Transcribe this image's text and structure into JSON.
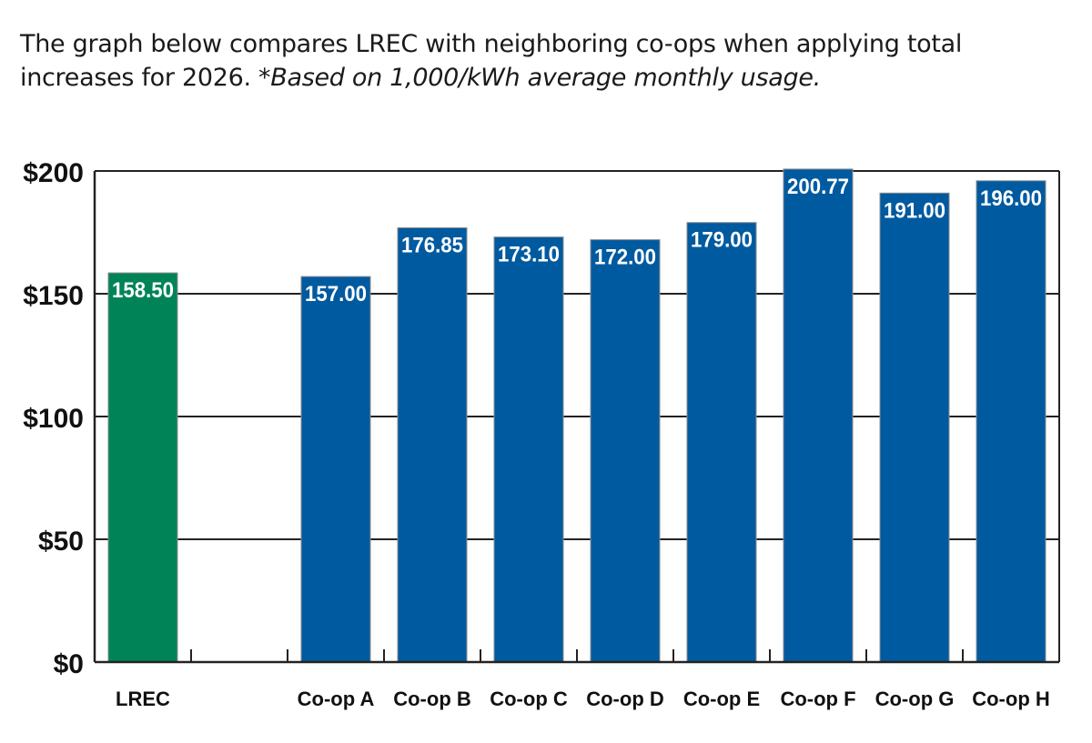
{
  "intro": {
    "text": "The graph below compares LREC with neighboring co-ops when applying total increases for 2026. ",
    "note": "*Based on 1,000/kWh average monthly usage."
  },
  "colors": {
    "highlight": "#008457",
    "default": "#005aa0",
    "bar_outline": "#8c8c8c",
    "axis": "#222222"
  },
  "chart_data": {
    "type": "bar",
    "title": "",
    "xlabel": "",
    "ylabel": "",
    "categories": [
      "LREC",
      "",
      "Co-op A",
      "Co-op B",
      "Co-op C",
      "Co-op D",
      "Co-op E",
      "Co-op F",
      "Co-op G",
      "Co-op H"
    ],
    "values": [
      158.5,
      null,
      157.0,
      176.85,
      173.1,
      172.0,
      179.0,
      200.77,
      191.0,
      196.0
    ],
    "value_labels": [
      "158.50",
      "",
      "157.00",
      "176.85",
      "173.10",
      "172.00",
      "179.00",
      "200.77",
      "191.00",
      "196.00"
    ],
    "highlight_index": 0,
    "ylim": [
      0,
      200
    ],
    "yticks": [
      0,
      50,
      100,
      150,
      200
    ],
    "ytick_labels": [
      "$0",
      "$50",
      "$100",
      "$150",
      "$200"
    ],
    "grid": true,
    "legend": "none"
  }
}
